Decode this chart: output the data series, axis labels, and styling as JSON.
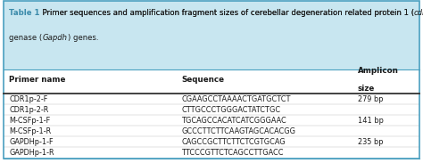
{
  "title_bg": "#c8e6f0",
  "border_color": "#4aa0c0",
  "text_color": "#1a1a1a",
  "label_color": "#3a8aaa",
  "figsize": [
    4.74,
    1.83
  ],
  "dpi": 100,
  "rows": [
    [
      "CDR1p-2-F",
      "CGAAGCCTAAAACTGATGCTCT",
      "279 bp"
    ],
    [
      "CDR1p-2-R",
      "CTTGCCCTGGGACTATCTGC",
      ""
    ],
    [
      "M-CSFp-1-F",
      "TGCAGCCACATCATCGGGAAC",
      "141 bp"
    ],
    [
      "M-CSFp-1-R",
      "GCCCTTCTTCAAGTAGCACACGG",
      ""
    ],
    [
      "GAPDHp-1-F",
      "CAGCCGCTTCTTCTCGTGCAG",
      "235 bp"
    ],
    [
      "GAPDHp-1-R",
      "TTCCCGTTCTCAGCCTTGACC",
      ""
    ]
  ]
}
